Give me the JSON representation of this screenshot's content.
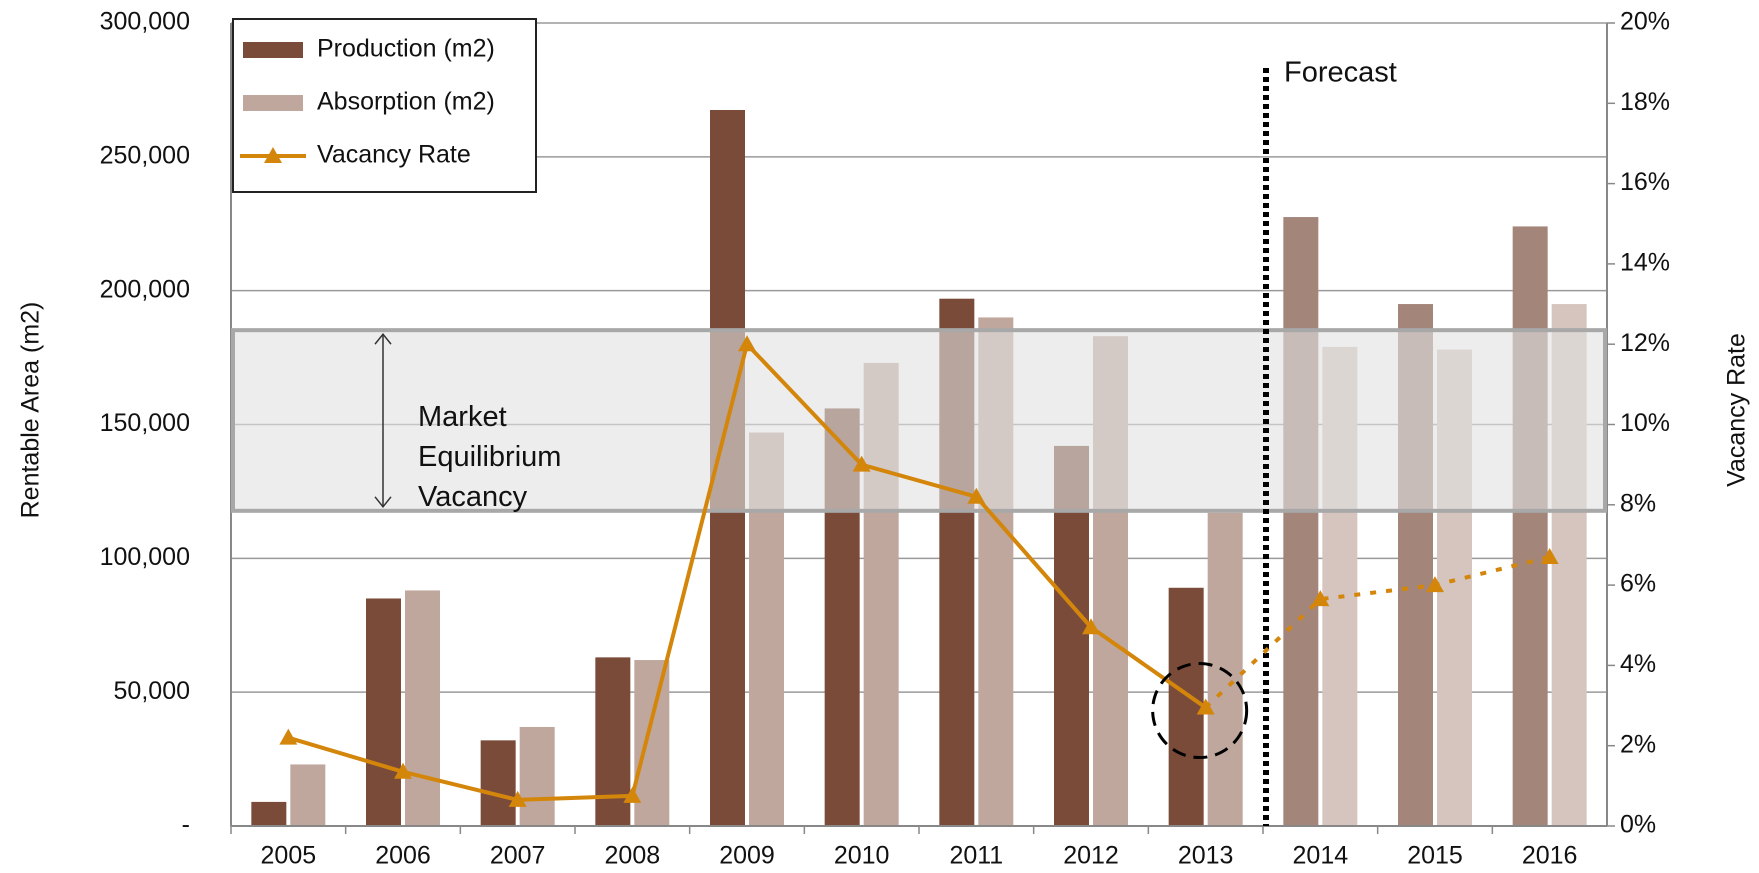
{
  "chart_data": {
    "type": "bar",
    "y_label": "Rentable Area (m2)",
    "y2_label": "Vacancy Rate",
    "categories": [
      "2005",
      "2006",
      "2007",
      "2008",
      "2009",
      "2010",
      "2011",
      "2012",
      "2013",
      "2014",
      "2015",
      "2016"
    ],
    "series": [
      {
        "name": "Production (m2)",
        "color": "#7b4b3a",
        "forecast_color": "#a3857a",
        "values": [
          9000,
          85000,
          32000,
          63000,
          267500,
          156000,
          197000,
          142000,
          89000,
          227500,
          195000,
          224000
        ]
      },
      {
        "name": "Absorption (m2)",
        "color": "#bfa79d",
        "forecast_color": "#d5c5be",
        "values": [
          23000,
          88000,
          37000,
          62000,
          147000,
          173000,
          190000,
          183000,
          117000,
          179000,
          178000,
          195000
        ]
      },
      {
        "name": "Vacancy Rate",
        "type": "line",
        "axis": "y2",
        "color": "#d4860b",
        "values": [
          2.2,
          1.35,
          0.65,
          0.75,
          12.0,
          9.0,
          8.2,
          4.95,
          2.95,
          5.65,
          6.0,
          6.7
        ]
      }
    ],
    "ylim": [
      0,
      300000
    ],
    "yticks": [
      {
        "value": 0,
        "label": "-"
      },
      {
        "value": 50000,
        "label": "50,000"
      },
      {
        "value": 100000,
        "label": "100,000"
      },
      {
        "value": 150000,
        "label": "150,000"
      },
      {
        "value": 200000,
        "label": "200,000"
      },
      {
        "value": 250000,
        "label": "250,000"
      },
      {
        "value": 300000,
        "label": "300,000"
      }
    ],
    "y2lim": [
      0,
      20
    ],
    "y2ticks": [
      {
        "value": 0,
        "label": "0%"
      },
      {
        "value": 2,
        "label": "2%"
      },
      {
        "value": 4,
        "label": "4%"
      },
      {
        "value": 6,
        "label": "6%"
      },
      {
        "value": 8,
        "label": "8%"
      },
      {
        "value": 10,
        "label": "10%"
      },
      {
        "value": 12,
        "label": "12%"
      },
      {
        "value": 14,
        "label": "14%"
      },
      {
        "value": 16,
        "label": "16%"
      },
      {
        "value": 18,
        "label": "18%"
      },
      {
        "value": 20,
        "label": "20%"
      }
    ],
    "grid": true,
    "legend": "upper left",
    "annotations": {
      "forecast": {
        "text": "Forecast",
        "from": "2014"
      },
      "equilibrium": {
        "lines": [
          "Market",
          "Equilibrium",
          "Vacancy"
        ],
        "range": [
          7.85,
          12.35
        ]
      }
    }
  }
}
